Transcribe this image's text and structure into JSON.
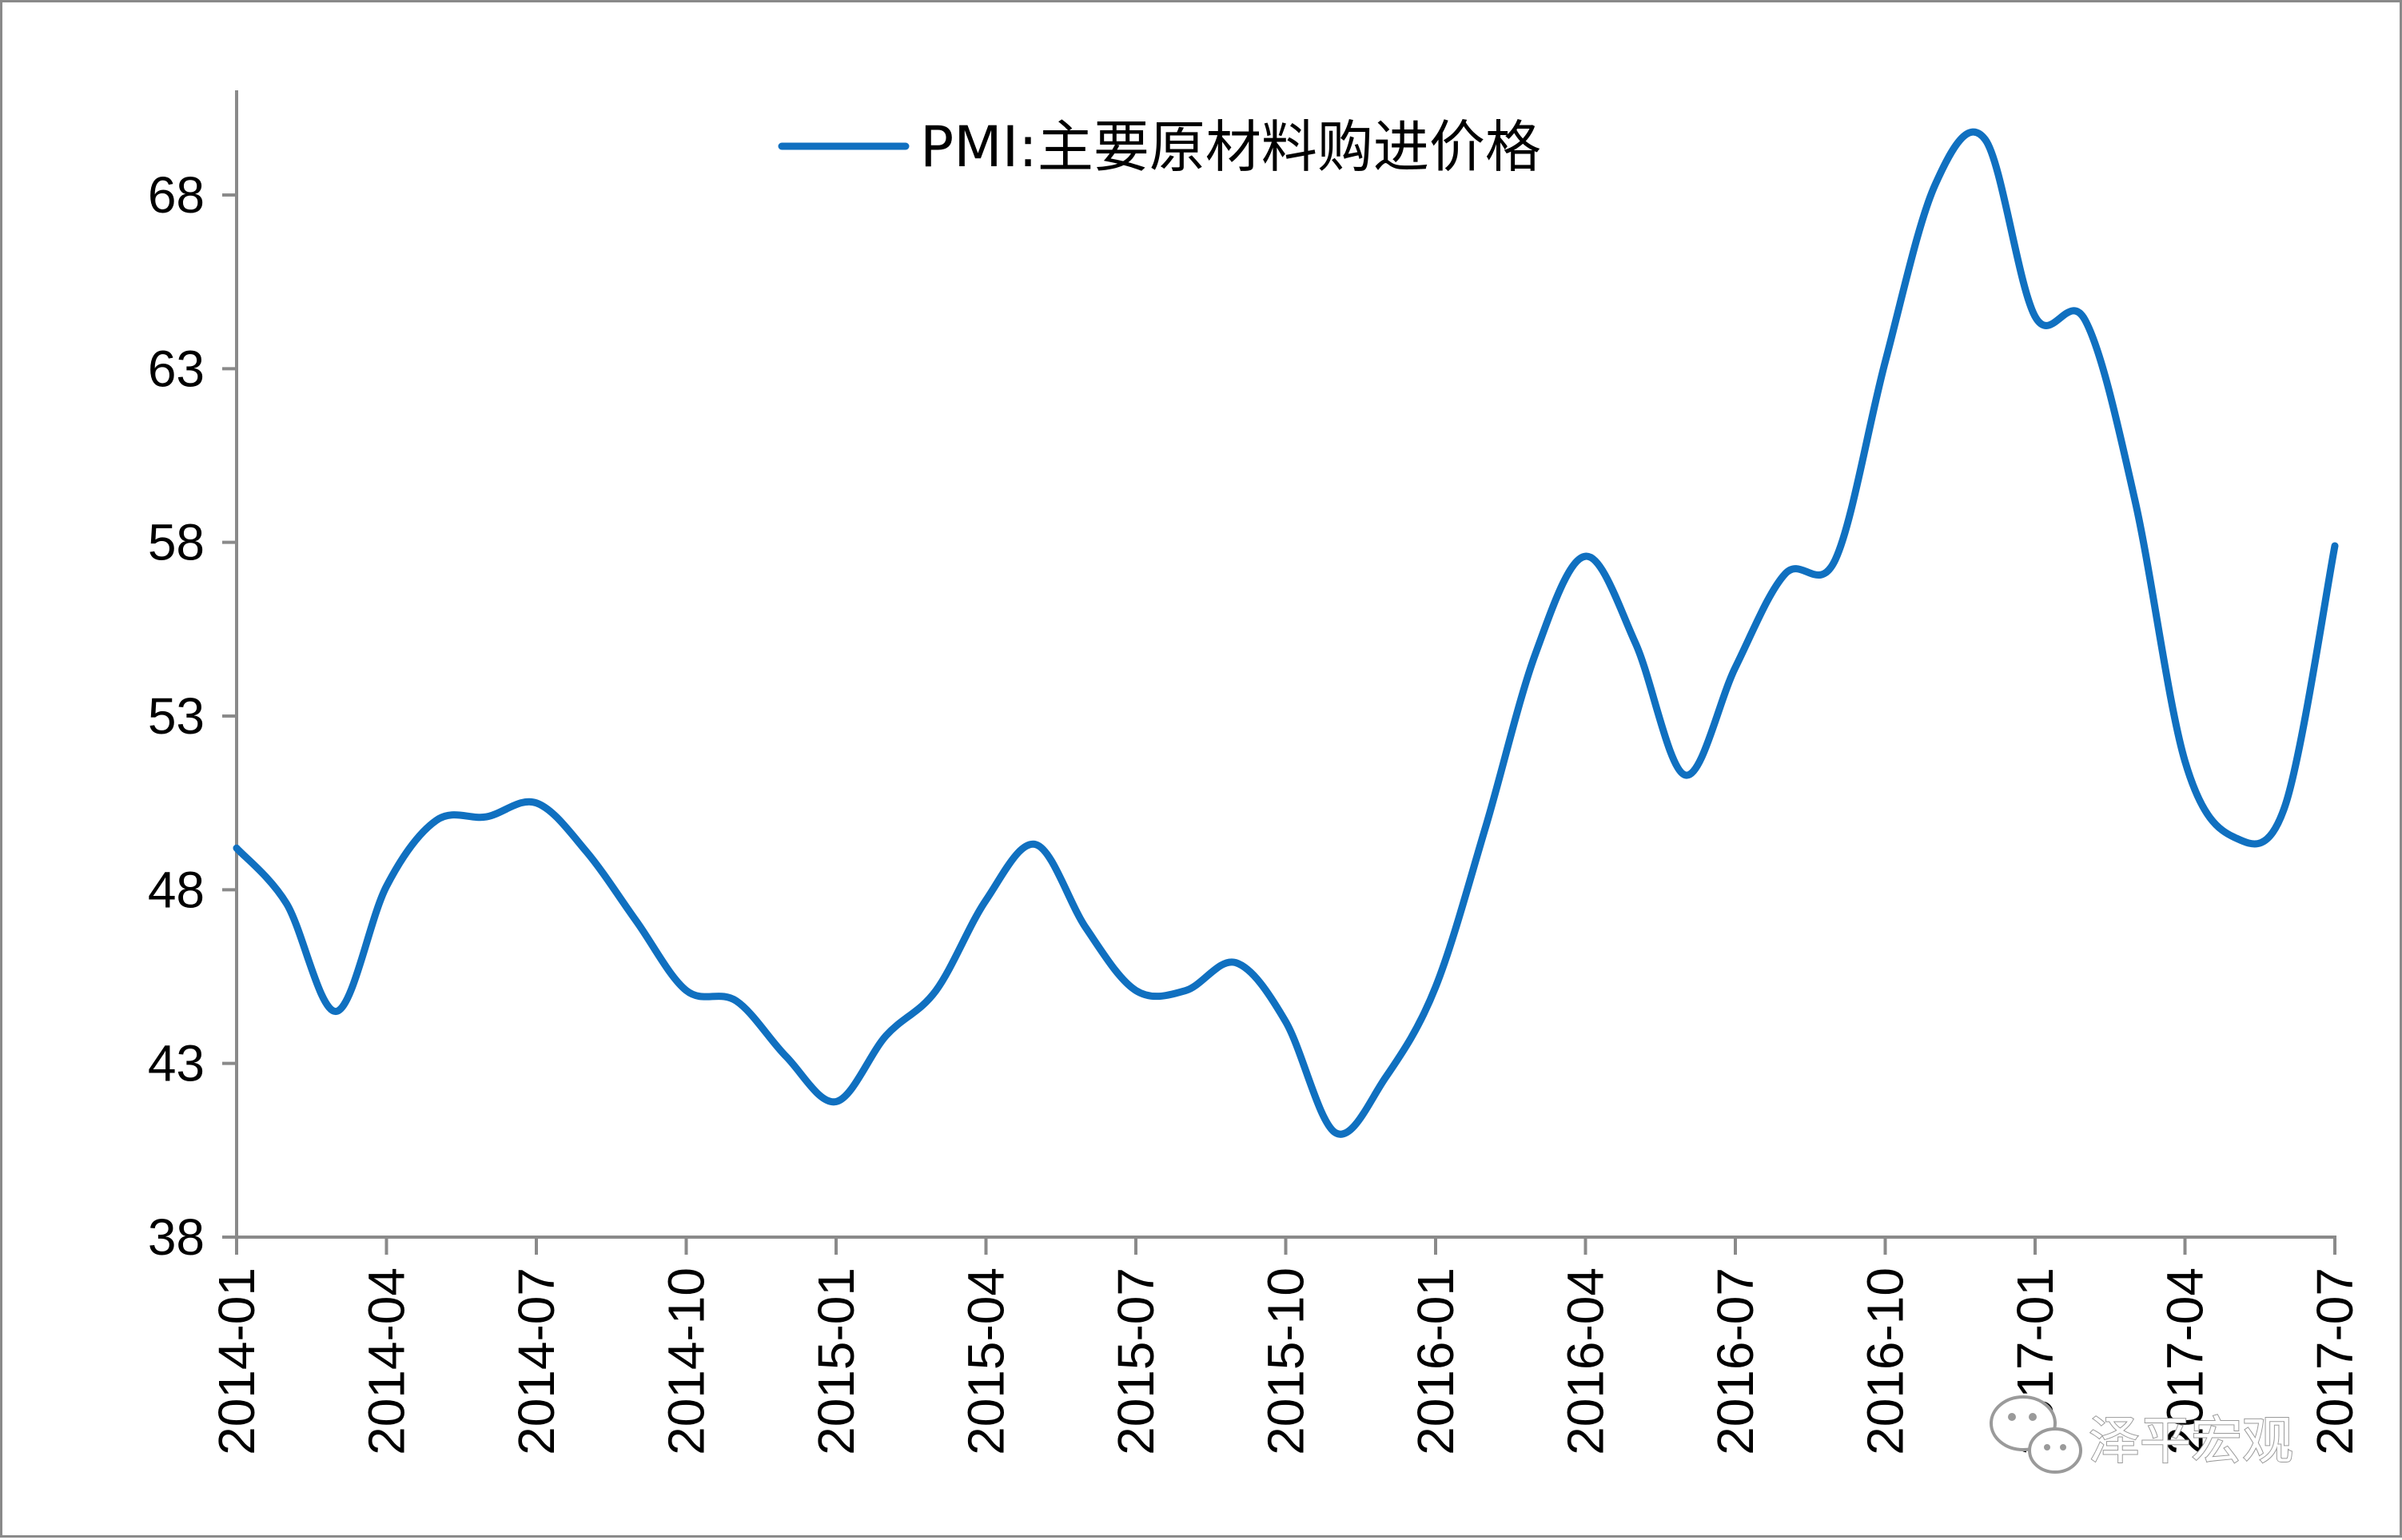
{
  "chart_data": {
    "type": "line",
    "title": "",
    "xlabel": "",
    "ylabel": "",
    "ylim": [
      38,
      71
    ],
    "yticks": [
      38,
      43,
      48,
      53,
      58,
      63,
      68
    ],
    "xtick_labels": [
      "2014-01",
      "2014-04",
      "2014-07",
      "2014-10",
      "2015-01",
      "2015-04",
      "2015-07",
      "2015-10",
      "2016-01",
      "2016-04",
      "2016-07",
      "2016-10",
      "2017-01",
      "2017-04",
      "2017-07"
    ],
    "grid": false,
    "legend_position": "top-center",
    "series": [
      {
        "name": "PMI:主要原材料购进价格",
        "color": "#1070C0",
        "x": [
          "2014-01",
          "2014-02",
          "2014-03",
          "2014-04",
          "2014-05",
          "2014-06",
          "2014-07",
          "2014-08",
          "2014-09",
          "2014-10",
          "2014-11",
          "2014-12",
          "2015-01",
          "2015-02",
          "2015-03",
          "2015-04",
          "2015-05",
          "2015-06",
          "2015-07",
          "2015-08",
          "2015-09",
          "2015-10",
          "2015-11",
          "2015-12",
          "2016-01",
          "2016-02",
          "2016-03",
          "2016-04",
          "2016-05",
          "2016-06",
          "2016-07",
          "2016-08",
          "2016-09",
          "2016-10",
          "2016-11",
          "2016-12",
          "2017-01",
          "2017-02",
          "2017-03",
          "2017-04",
          "2017-05",
          "2017-06",
          "2017-07"
        ],
        "values": [
          49.2,
          47.6,
          44.5,
          48.1,
          50.0,
          50.1,
          50.5,
          49.1,
          47.1,
          45.1,
          44.8,
          43.2,
          41.9,
          43.8,
          45.1,
          47.7,
          49.3,
          46.9,
          45.1,
          45.1,
          45.9,
          44.2,
          41.0,
          42.6,
          45.2,
          49.8,
          54.8,
          57.6,
          55.1,
          51.3,
          54.4,
          57.1,
          57.5,
          63.2,
          68.3,
          69.6,
          64.5,
          64.4,
          59.2,
          51.7,
          49.5,
          50.4,
          57.9
        ]
      }
    ]
  },
  "watermark": {
    "text": "泽平宏观",
    "icon": "wechat-icon"
  }
}
